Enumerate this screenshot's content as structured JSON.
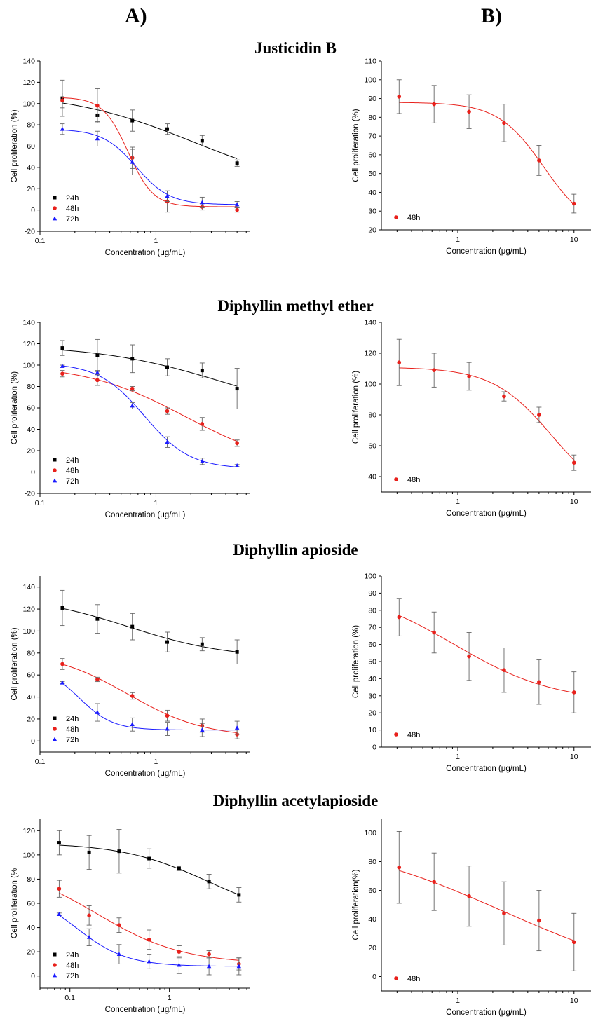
{
  "panel_letters": [
    "A)",
    "B)"
  ],
  "compound_titles": [
    "Justicidin B",
    "Diphyllin methyl ether",
    "Diphyllin apioside",
    "Diphyllin acetylapioside"
  ],
  "series_style": {
    "24h": {
      "color": "#000000",
      "marker": "square"
    },
    "48h": {
      "color": "#e8201b",
      "marker": "circle"
    },
    "72h": {
      "color": "#1a1aff",
      "marker": "triangle"
    }
  },
  "chart_data": [
    {
      "type": "scatter",
      "panel": "A",
      "compound": "Justicidin B",
      "xscale": "log",
      "xlabel": "Concentration (μg/mL)",
      "ylabel": "Cell proliferation (%)",
      "xlim": [
        0.1,
        6.5
      ],
      "ylim": [
        -20,
        140
      ],
      "xticks": [
        0.1,
        1
      ],
      "xtick_labels": [
        "0.1",
        "1"
      ],
      "yticks": [
        -20,
        0,
        20,
        40,
        60,
        80,
        100,
        120,
        140
      ],
      "legend": "bottom-left",
      "x": [
        0.156,
        0.3125,
        0.625,
        1.25,
        2.5,
        5
      ],
      "series": [
        {
          "name": "24h",
          "values": [
            105,
            89,
            84,
            76,
            65,
            44
          ],
          "errors": [
            17,
            6,
            10,
            5,
            5,
            3
          ]
        },
        {
          "name": "48h",
          "values": [
            103,
            98,
            49,
            8,
            3,
            0
          ],
          "errors": [
            7,
            16,
            10,
            10,
            3,
            2
          ]
        },
        {
          "name": "72h",
          "values": [
            76,
            67,
            45,
            13,
            7,
            5
          ],
          "errors": [
            5,
            7,
            12,
            5,
            5,
            3
          ]
        }
      ]
    },
    {
      "type": "scatter",
      "panel": "B",
      "compound": "Justicidin B",
      "xscale": "log",
      "xlabel": "Concentration (μg/mL)",
      "ylabel": "Cell proliferation (%)",
      "xlim": [
        0.22,
        14
      ],
      "ylim": [
        20,
        110
      ],
      "xticks": [
        1,
        10
      ],
      "xtick_labels": [
        "1",
        "10"
      ],
      "yticks": [
        20,
        30,
        40,
        50,
        60,
        70,
        80,
        90,
        100,
        110
      ],
      "legend": "bottom-left",
      "x": [
        0.3125,
        0.625,
        1.25,
        2.5,
        5,
        10
      ],
      "series": [
        {
          "name": "48h",
          "values": [
            91,
            87,
            83,
            77,
            57,
            34
          ],
          "errors": [
            9,
            10,
            9,
            10,
            8,
            5
          ]
        }
      ]
    },
    {
      "type": "scatter",
      "panel": "A",
      "compound": "Diphyllin methyl ether",
      "xscale": "log",
      "xlabel": "Concentration (μg/mL)",
      "ylabel": "Cell proliferation (%)",
      "xlim": [
        0.1,
        6.5
      ],
      "ylim": [
        -20,
        140
      ],
      "xticks": [
        0.1,
        1
      ],
      "xtick_labels": [
        "0.1",
        "1"
      ],
      "yticks": [
        -20,
        0,
        20,
        40,
        60,
        80,
        100,
        120,
        140
      ],
      "legend": "bottom-left",
      "x": [
        0.156,
        0.3125,
        0.625,
        1.25,
        2.5,
        5
      ],
      "series": [
        {
          "name": "24h",
          "values": [
            116,
            109,
            106,
            98,
            95,
            78
          ],
          "errors": [
            7,
            15,
            13,
            8,
            7,
            19
          ]
        },
        {
          "name": "48h",
          "values": [
            92,
            86,
            78,
            57,
            45,
            27
          ],
          "errors": [
            3,
            5,
            2,
            3,
            6,
            3
          ]
        },
        {
          "name": "72h",
          "values": [
            99,
            93,
            62,
            28,
            10,
            6
          ],
          "errors": [
            1,
            2,
            3,
            5,
            3,
            1
          ]
        }
      ]
    },
    {
      "type": "scatter",
      "panel": "B",
      "compound": "Diphyllin methyl ether",
      "xscale": "log",
      "xlabel": "Concentration (μg/mL)",
      "ylabel": "Cell proliferation (%)",
      "xlim": [
        0.22,
        14
      ],
      "ylim": [
        30,
        140
      ],
      "xticks": [
        1,
        10
      ],
      "xtick_labels": [
        "1",
        "10"
      ],
      "yticks": [
        40,
        60,
        80,
        100,
        120,
        140
      ],
      "legend": "bottom-left",
      "x": [
        0.3125,
        0.625,
        1.25,
        2.5,
        5,
        10
      ],
      "series": [
        {
          "name": "48h",
          "values": [
            114,
            109,
            105,
            92,
            80,
            49
          ],
          "errors": [
            15,
            11,
            9,
            3,
            5,
            5
          ]
        }
      ]
    },
    {
      "type": "scatter",
      "panel": "A",
      "compound": "Diphyllin apioside",
      "xscale": "log",
      "xlabel": "Concentration (μg/mL)",
      "ylabel": "Cell proliferation (%)",
      "xlim": [
        0.1,
        6.5
      ],
      "ylim": [
        -10,
        150
      ],
      "xticks": [
        0.1,
        1
      ],
      "xtick_labels": [
        "0.1",
        "1"
      ],
      "yticks": [
        0,
        20,
        40,
        60,
        80,
        100,
        120,
        140
      ],
      "legend": "bottom-left",
      "x": [
        0.156,
        0.3125,
        0.625,
        1.25,
        2.5,
        5
      ],
      "series": [
        {
          "name": "24h",
          "values": [
            121,
            111,
            104,
            90,
            88,
            81
          ],
          "errors": [
            16,
            13,
            12,
            9,
            6,
            11
          ]
        },
        {
          "name": "48h",
          "values": [
            70,
            56,
            41,
            23,
            14,
            6
          ],
          "errors": [
            5,
            2,
            3,
            5,
            6,
            4
          ]
        },
        {
          "name": "72h",
          "values": [
            53,
            26,
            15,
            11,
            10,
            12
          ],
          "errors": [
            1,
            8,
            6,
            6,
            6,
            6
          ]
        }
      ]
    },
    {
      "type": "scatter",
      "panel": "B",
      "compound": "Diphyllin apioside",
      "xscale": "log",
      "xlabel": "Concentration (μg/mL)",
      "ylabel": "Cell proliferation (%)",
      "xlim": [
        0.22,
        14
      ],
      "ylim": [
        0,
        100
      ],
      "xticks": [
        1,
        10
      ],
      "xtick_labels": [
        "1",
        "10"
      ],
      "yticks": [
        0,
        10,
        20,
        30,
        40,
        50,
        60,
        70,
        80,
        90,
        100
      ],
      "legend": "bottom-left",
      "x": [
        0.3125,
        0.625,
        1.25,
        2.5,
        5,
        10
      ],
      "series": [
        {
          "name": "48h",
          "values": [
            76,
            67,
            53,
            45,
            38,
            32
          ],
          "errors": [
            11,
            12,
            14,
            13,
            13,
            12
          ]
        }
      ]
    },
    {
      "type": "scatter",
      "panel": "A",
      "compound": "Diphyllin acetylapioside",
      "xscale": "log",
      "xlabel": "Concentration (μg/mL)",
      "ylabel": "Cell proliferation (%",
      "xlim": [
        0.05,
        6.5
      ],
      "ylim": [
        -10,
        130
      ],
      "xticks": [
        0.1,
        1
      ],
      "xtick_labels": [
        "0.1",
        "1"
      ],
      "yticks": [
        0,
        20,
        40,
        60,
        80,
        100,
        120
      ],
      "legend": "bottom-left",
      "x": [
        0.078,
        0.156,
        0.3125,
        0.625,
        1.25,
        2.5,
        5
      ],
      "series": [
        {
          "name": "24h",
          "values": [
            110,
            102,
            103,
            97,
            89,
            78,
            67
          ],
          "errors": [
            10,
            14,
            18,
            8,
            2,
            6,
            6
          ]
        },
        {
          "name": "48h",
          "values": [
            72,
            50,
            42,
            30,
            20,
            18,
            10
          ],
          "errors": [
            7,
            8,
            6,
            8,
            5,
            3,
            5
          ]
        },
        {
          "name": "72h",
          "values": [
            51,
            32,
            18,
            12,
            9,
            8,
            8
          ],
          "errors": [
            1,
            7,
            8,
            6,
            7,
            7,
            7
          ]
        }
      ]
    },
    {
      "type": "scatter",
      "panel": "B",
      "compound": "Diphyllin acetylapioside",
      "xscale": "log",
      "xlabel": "Concentration (μg/mL)",
      "ylabel": "Cell proliferation(%)",
      "xlim": [
        0.22,
        14
      ],
      "ylim": [
        -10,
        110
      ],
      "xticks": [
        1,
        10
      ],
      "xtick_labels": [
        "1",
        "10"
      ],
      "yticks": [
        0,
        20,
        40,
        60,
        80,
        100
      ],
      "legend": "bottom-left",
      "x": [
        0.3125,
        0.625,
        1.25,
        2.5,
        5,
        10
      ],
      "series": [
        {
          "name": "48h",
          "values": [
            76,
            66,
            56,
            44,
            39,
            24
          ],
          "errors": [
            25,
            20,
            21,
            22,
            21,
            20
          ]
        }
      ]
    }
  ]
}
